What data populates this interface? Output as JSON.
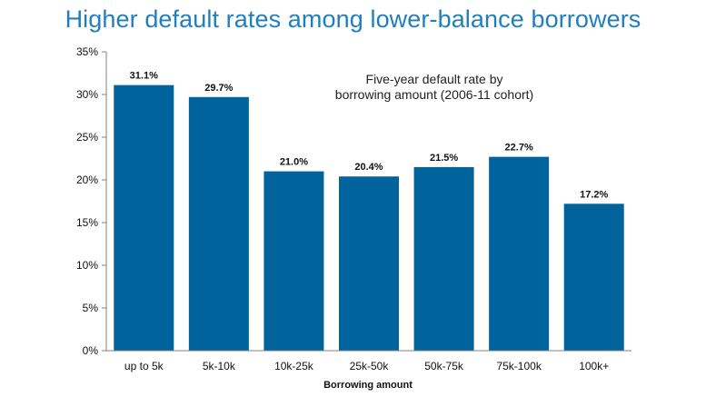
{
  "chart_data": {
    "type": "bar",
    "title": "Higher default rates among lower-balance borrowers",
    "annotation": [
      "Five-year default rate by",
      "borrowing amount (2006-11 cohort)"
    ],
    "xlabel": "Borrowing amount",
    "ylabel": "",
    "categories": [
      "up to 5k",
      "5k-10k",
      "10k-25k",
      "25k-50k",
      "50k-75k",
      "75k-100k",
      "100k+"
    ],
    "values": [
      31.1,
      29.7,
      21.0,
      20.4,
      21.5,
      22.7,
      17.2
    ],
    "value_labels": [
      "31.1%",
      "29.7%",
      "21.0%",
      "20.4%",
      "21.5%",
      "22.7%",
      "17.2%"
    ],
    "ylim": [
      0,
      35
    ],
    "yticks": [
      0,
      5,
      10,
      15,
      20,
      25,
      30,
      35
    ],
    "ytick_labels": [
      "0%",
      "5%",
      "10%",
      "15%",
      "20%",
      "25%",
      "30%",
      "35%"
    ],
    "bar_color": "#00639c",
    "title_color": "#1f7fc1",
    "grid": false,
    "legend": "none"
  }
}
